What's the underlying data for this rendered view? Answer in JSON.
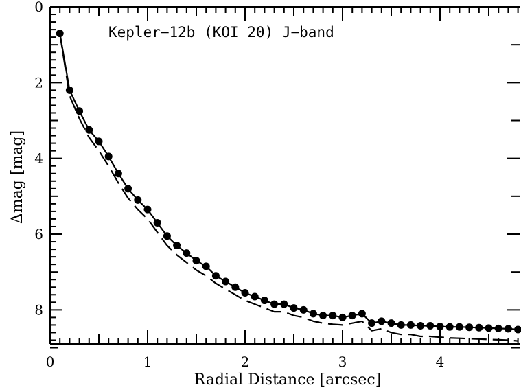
{
  "chart_data": {
    "type": "line",
    "title": "",
    "annotation": "Kepler−12b (KOI 20) J−band",
    "xlabel": "Radial Distance [arcsec]",
    "ylabel": "Δmag [mag]",
    "xlim": [
      0,
      4.85
    ],
    "ylim": [
      8.9,
      0
    ],
    "y_inverted": true,
    "grid": false,
    "x_ticks": [
      0,
      1,
      2,
      3,
      4
    ],
    "x_tick_labels": [
      "0",
      "1",
      "2",
      "3",
      "4"
    ],
    "y_ticks": [
      0,
      2,
      4,
      6,
      8
    ],
    "y_tick_labels": [
      "0",
      "2",
      "4",
      "6",
      "8"
    ],
    "series": [
      {
        "style": "solid-with-filled-circles",
        "x": [
          0.1,
          0.2,
          0.3,
          0.4,
          0.5,
          0.6,
          0.7,
          0.8,
          0.9,
          1.0,
          1.1,
          1.2,
          1.3,
          1.4,
          1.5,
          1.6,
          1.7,
          1.8,
          1.9,
          2.0,
          2.1,
          2.2,
          2.3,
          2.4,
          2.5,
          2.6,
          2.7,
          2.8,
          2.9,
          3.0,
          3.1,
          3.2,
          3.3,
          3.4,
          3.5,
          3.6,
          3.7,
          3.8,
          3.9,
          4.0,
          4.1,
          4.2,
          4.3,
          4.4,
          4.5,
          4.6,
          4.7,
          4.8
        ],
        "y": [
          0.7,
          2.2,
          2.75,
          3.25,
          3.55,
          3.95,
          4.4,
          4.8,
          5.1,
          5.35,
          5.7,
          6.05,
          6.3,
          6.5,
          6.7,
          6.85,
          7.1,
          7.25,
          7.4,
          7.55,
          7.65,
          7.75,
          7.85,
          7.85,
          7.95,
          8.0,
          8.1,
          8.15,
          8.15,
          8.2,
          8.15,
          8.1,
          8.35,
          8.3,
          8.35,
          8.4,
          8.4,
          8.42,
          8.42,
          8.44,
          8.45,
          8.45,
          8.46,
          8.47,
          8.48,
          8.49,
          8.5,
          8.52
        ]
      },
      {
        "style": "dashed",
        "x": [
          0.1,
          0.2,
          0.3,
          0.4,
          0.5,
          0.6,
          0.7,
          0.8,
          0.9,
          1.0,
          1.1,
          1.2,
          1.3,
          1.4,
          1.5,
          1.6,
          1.7,
          1.8,
          1.9,
          2.0,
          2.1,
          2.2,
          2.3,
          2.4,
          2.5,
          2.6,
          2.7,
          2.8,
          2.9,
          3.0,
          3.1,
          3.2,
          3.3,
          3.4,
          3.5,
          3.6,
          3.7,
          3.8,
          3.9,
          4.0,
          4.1,
          4.2,
          4.3,
          4.4,
          4.5,
          4.6,
          4.7,
          4.8
        ],
        "y": [
          0.7,
          2.35,
          2.95,
          3.45,
          3.8,
          4.2,
          4.65,
          5.05,
          5.35,
          5.6,
          5.95,
          6.3,
          6.55,
          6.75,
          6.95,
          7.1,
          7.3,
          7.45,
          7.6,
          7.75,
          7.85,
          7.95,
          8.05,
          8.05,
          8.15,
          8.2,
          8.3,
          8.35,
          8.38,
          8.4,
          8.35,
          8.3,
          8.55,
          8.5,
          8.6,
          8.65,
          8.65,
          8.7,
          8.7,
          8.72,
          8.74,
          8.75,
          8.76,
          8.77,
          8.78,
          8.79,
          8.8,
          8.82
        ]
      }
    ]
  }
}
